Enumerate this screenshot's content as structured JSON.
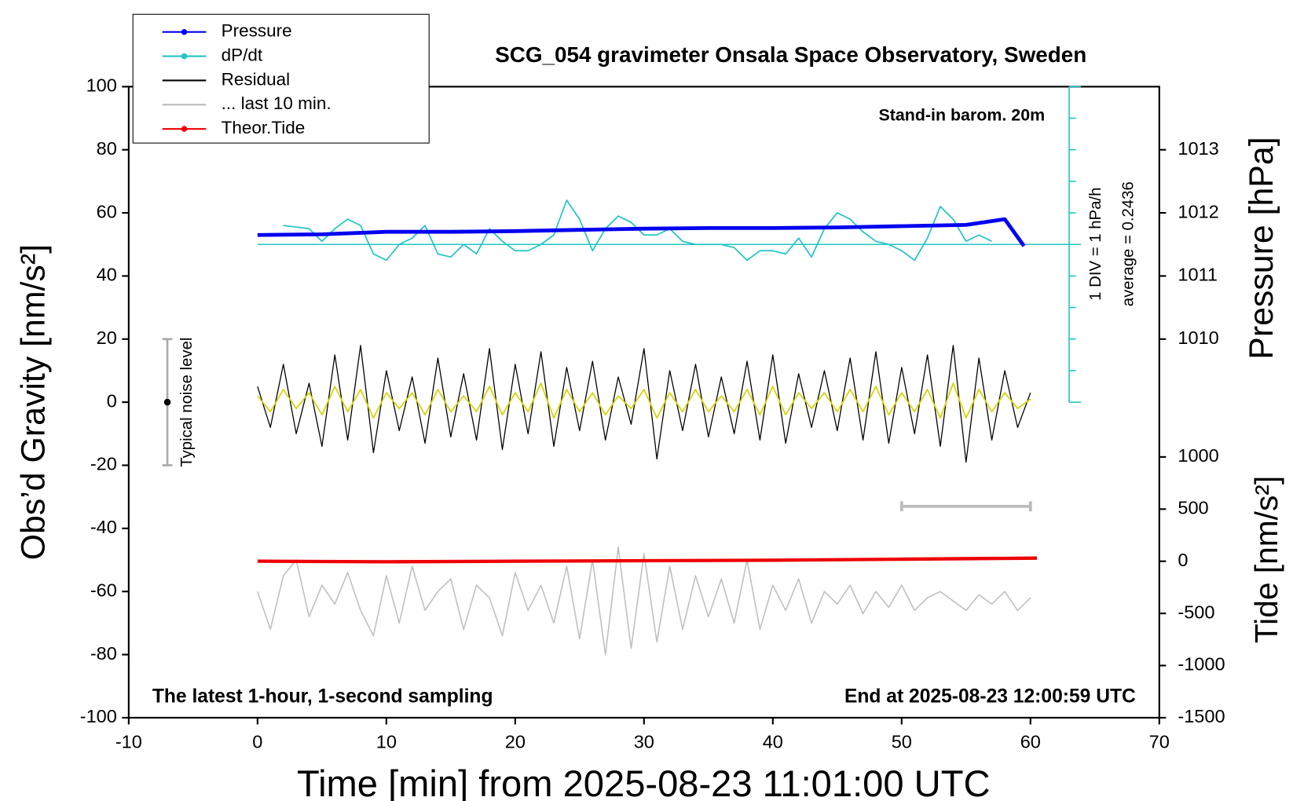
{
  "chart_data": {
    "type": "line",
    "title": "SCG_054 gravimeter Onsala Space Observatory, Sweden",
    "xlabel": "Time [min] from 2025-08-23 11:01:00 UTC",
    "ylabel": "Obs’d Gravity [nm/s²]",
    "y2label": "Pressure [hPa]",
    "y3label": "Tide [nm/s²]",
    "xlim": [
      -10,
      70
    ],
    "xticks": [
      -10,
      0,
      10,
      20,
      30,
      40,
      50,
      60,
      70
    ],
    "ylim": [
      -100,
      100
    ],
    "yticks": [
      -100,
      -80,
      -60,
      -40,
      -20,
      0,
      20,
      40,
      60,
      80,
      100
    ],
    "y2lim": [
      1004,
      1014
    ],
    "y2ticks": [
      1010,
      1011,
      1012,
      1013
    ],
    "y3lim": [
      -1500,
      4550
    ],
    "y3ticks": [
      -1500,
      -1000,
      -500,
      0,
      500,
      1000
    ],
    "dpdt_baseline": 50,
    "dpdt_ticks": [
      0,
      10,
      20,
      30,
      40,
      50,
      60,
      70,
      80,
      90,
      100
    ],
    "annotations": {
      "barometer": "Stand-in barom. 20m",
      "div": "1 DIV = 1 hPa/h",
      "average": "average = 0.2436",
      "sampling": "The latest 1-hour, 1-second sampling",
      "end": "End at 2025-08-23 12:00:59 UTC"
    },
    "noise": {
      "x": -7,
      "low": -20,
      "high": 20,
      "center": 0,
      "label": "Typical noise level"
    },
    "series": [
      {
        "name": "Pressure",
        "color": "#0000ee",
        "axis": "y2",
        "marker": true,
        "x": [
          0,
          5,
          10,
          15,
          20,
          25,
          30,
          35,
          40,
          45,
          50,
          55,
          58,
          59.5
        ],
        "values": [
          1011.65,
          1011.66,
          1011.7,
          1011.7,
          1011.71,
          1011.73,
          1011.75,
          1011.76,
          1011.76,
          1011.77,
          1011.79,
          1011.81,
          1011.9,
          1011.475
        ]
      },
      {
        "name": "dP/dt",
        "color": "#22c4c4",
        "marker": true,
        "x": [
          2,
          3,
          4,
          5,
          6,
          7,
          8,
          9,
          10,
          11,
          12,
          13,
          14,
          15,
          16,
          17,
          18,
          19,
          20,
          21,
          22,
          23,
          24,
          25,
          26,
          27,
          28,
          29,
          30,
          31,
          32,
          33,
          34,
          35,
          36,
          37,
          38,
          39,
          40,
          41,
          42,
          43,
          44,
          45,
          46,
          47,
          48,
          49,
          50,
          51,
          52,
          53,
          54,
          55,
          56,
          57
        ],
        "values": [
          56,
          55.5,
          55,
          51,
          55,
          58,
          56,
          47,
          45,
          50,
          52,
          56,
          47,
          46,
          50,
          47,
          55,
          51,
          48,
          48,
          50,
          53,
          64,
          58,
          48,
          55,
          59,
          57,
          53,
          53,
          55,
          51,
          50,
          50,
          50,
          49,
          45,
          48,
          48,
          47,
          52,
          46,
          55,
          60,
          58,
          54,
          51,
          50,
          48,
          45,
          52,
          62,
          58,
          51,
          53,
          51
        ]
      },
      {
        "name": "Residual",
        "color": "#000000",
        "x": [
          0,
          1,
          2,
          3,
          4,
          5,
          6,
          7,
          8,
          9,
          10,
          11,
          12,
          13,
          14,
          15,
          16,
          17,
          18,
          19,
          20,
          21,
          22,
          23,
          24,
          25,
          26,
          27,
          28,
          29,
          30,
          31,
          32,
          33,
          34,
          35,
          36,
          37,
          38,
          39,
          40,
          41,
          42,
          43,
          44,
          45,
          46,
          47,
          48,
          49,
          50,
          51,
          52,
          53,
          54,
          55,
          56,
          57,
          58,
          59,
          60
        ],
        "values": [
          5,
          -8,
          12,
          -10,
          6,
          -14,
          15,
          -12,
          18,
          -16,
          10,
          -9,
          8,
          -13,
          14,
          -11,
          9,
          -12,
          17,
          -15,
          12,
          -10,
          16,
          -14,
          11,
          -9,
          13,
          -12,
          8,
          -7,
          17,
          -18,
          10,
          -9,
          12,
          -11,
          8,
          -10,
          13,
          -12,
          15,
          -13,
          9,
          -8,
          10,
          -9,
          14,
          -12,
          16,
          -13,
          11,
          -10,
          15,
          -14,
          18,
          -19,
          14,
          -12,
          10,
          -8,
          3
        ]
      },
      {
        "color": "#d4d400",
        "x": [
          0,
          1,
          2,
          3,
          4,
          5,
          6,
          7,
          8,
          9,
          10,
          11,
          12,
          13,
          14,
          15,
          16,
          17,
          18,
          19,
          20,
          21,
          22,
          23,
          24,
          25,
          26,
          27,
          28,
          29,
          30,
          31,
          32,
          33,
          34,
          35,
          36,
          37,
          38,
          39,
          40,
          41,
          42,
          43,
          44,
          45,
          46,
          47,
          48,
          49,
          50,
          51,
          52,
          53,
          54,
          55,
          56,
          57,
          58,
          59,
          60
        ],
        "values": [
          2,
          -3,
          4,
          -2,
          3,
          -4,
          5,
          -3,
          4,
          -5,
          3,
          -2,
          3,
          -4,
          4,
          -3,
          2,
          -3,
          5,
          -4,
          3,
          -3,
          6,
          -5,
          4,
          -3,
          3,
          -4,
          2,
          -2,
          4,
          -5,
          3,
          -3,
          4,
          -3,
          2,
          -3,
          4,
          -4,
          5,
          -4,
          3,
          -2,
          3,
          -3,
          4,
          -3,
          5,
          -4,
          3,
          -3,
          4,
          -5,
          6,
          -5,
          4,
          -3,
          3,
          -2,
          1
        ]
      },
      {
        "color": "#c0c0c0",
        "x": [
          0,
          1,
          2,
          3,
          4,
          5,
          6,
          7,
          8,
          9,
          10,
          11,
          12,
          13,
          14,
          15,
          16,
          17,
          18,
          19,
          20,
          21,
          22,
          23,
          24,
          25,
          26,
          27,
          28,
          29,
          30,
          31,
          32,
          33,
          34,
          35,
          36,
          37,
          38,
          39,
          40,
          41,
          42,
          43,
          44,
          45,
          46,
          47,
          48,
          49,
          50,
          51,
          52,
          53,
          54,
          55,
          56,
          57,
          58,
          59,
          60
        ],
        "values": [
          -60,
          -72,
          -55,
          -50,
          -68,
          -58,
          -64,
          -54,
          -66,
          -74,
          -55,
          -70,
          -52,
          -66,
          -60,
          -56,
          -72,
          -58,
          -62,
          -74,
          -54,
          -66,
          -58,
          -70,
          -52,
          -75,
          -50,
          -80,
          -46,
          -78,
          -48,
          -76,
          -52,
          -72,
          -55,
          -68,
          -56,
          -70,
          -50,
          -72,
          -58,
          -66,
          -56,
          -70,
          -60,
          -64,
          -58,
          -67,
          -60,
          -65,
          -58,
          -66,
          -62,
          -60,
          -63,
          -66,
          -61,
          -64,
          -60,
          -66,
          -62
        ]
      },
      {
        "name": "... last 10 min.",
        "color": "#bbbbbb",
        "x": [
          50,
          60
        ],
        "values": [
          -33,
          -33
        ]
      },
      {
        "name": "Theor.Tide",
        "color": "#ee0000",
        "axis": "y3",
        "marker": true,
        "x": [
          0,
          10,
          20,
          30,
          40,
          50,
          60.5
        ],
        "values": [
          0,
          -5,
          0,
          5,
          10,
          20,
          30
        ]
      }
    ]
  }
}
